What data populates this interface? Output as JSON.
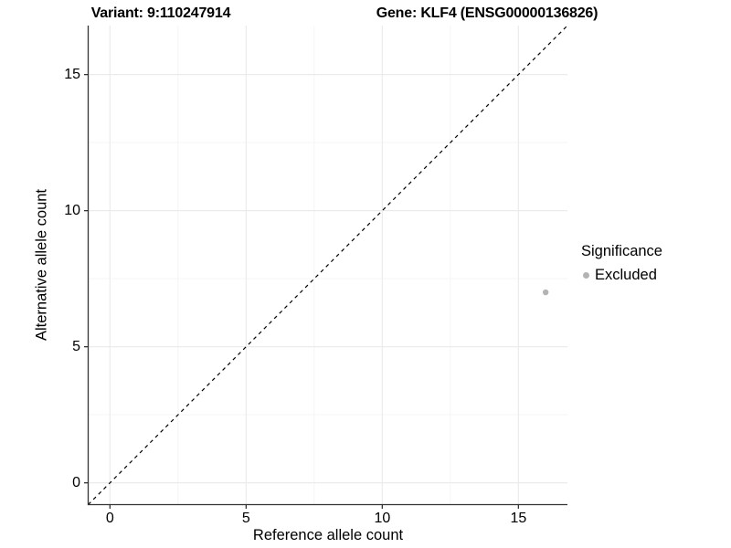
{
  "titles": {
    "variant": "Variant: 9:110247914",
    "gene": "Gene: KLF4 (ENSG00000136826)"
  },
  "legend": {
    "title": "Significance",
    "items": [
      {
        "label": "Excluded",
        "color": "#b3b3b3"
      }
    ]
  },
  "chart_data": {
    "type": "scatter",
    "title": "Variant: 9:110247914 | Gene: KLF4 (ENSG00000136826)",
    "xlabel": "Reference allele count",
    "ylabel": "Alternative allele count",
    "xlim": [
      -0.8,
      16.8
    ],
    "ylim": [
      -0.8,
      16.8
    ],
    "xticks": [
      0,
      5,
      10,
      15
    ],
    "yticks": [
      0,
      5,
      10,
      15
    ],
    "minor_ticks": [
      2.5,
      7.5,
      12.5
    ],
    "grid": true,
    "legend_position": "right",
    "series": [
      {
        "name": "Excluded",
        "points": [
          {
            "x": 16,
            "y": 7
          }
        ],
        "color": "#b3b3b3"
      }
    ],
    "reference_line": {
      "kind": "identity y=x",
      "style": "dashed",
      "color": "#000000"
    }
  },
  "colors": {
    "background": "#ffffff",
    "grid_major": "#ebebeb",
    "grid_minor": "#f5f5f5",
    "axis": "#333333",
    "point": "#b3b3b3",
    "text": "#000000"
  }
}
